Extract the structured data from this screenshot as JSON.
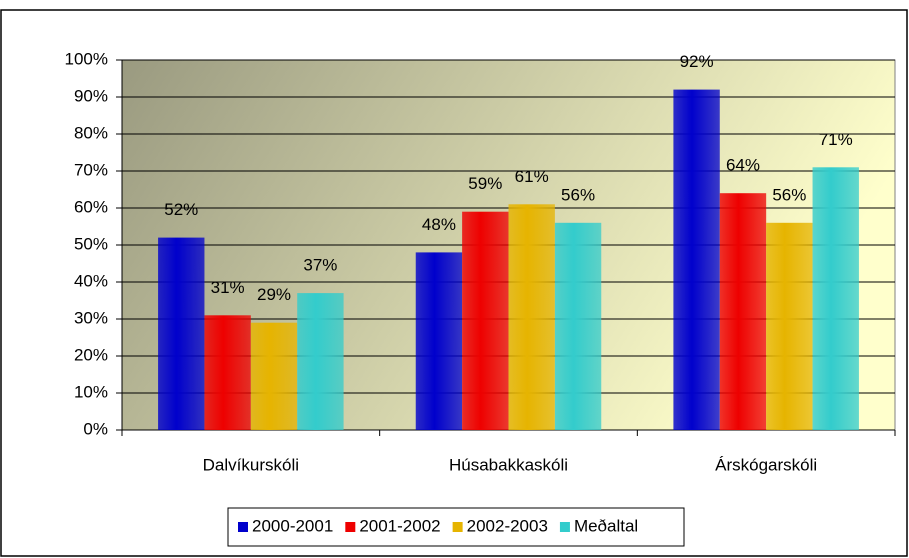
{
  "chart_data": {
    "type": "bar",
    "categories": [
      "Dalvíkurskóli",
      "Húsabakkaskóli",
      "Árskógarskóli"
    ],
    "series": [
      {
        "name": "2000-2001",
        "color": "#0000cc",
        "values": [
          52,
          48,
          92
        ],
        "value_labels": [
          "52%",
          "48%",
          "92%"
        ]
      },
      {
        "name": "2001-2002",
        "color": "#ee0000",
        "values": [
          31,
          59,
          64
        ],
        "value_labels": [
          "31%",
          "59%",
          "64%"
        ]
      },
      {
        "name": "2002-2003",
        "color": "#e6b400",
        "values": [
          29,
          61,
          56
        ],
        "value_labels": [
          "29%",
          "61%",
          "56%"
        ]
      },
      {
        "name": "Meðaltal",
        "color": "#33cccc",
        "values": [
          37,
          56,
          71
        ],
        "value_labels": [
          "37%",
          "56%",
          "71%"
        ]
      }
    ],
    "ylim": [
      0,
      100
    ],
    "yticks": [
      {
        "value": 0,
        "label": "0%"
      },
      {
        "value": 10,
        "label": "10%"
      },
      {
        "value": 20,
        "label": "20%"
      },
      {
        "value": 30,
        "label": "30%"
      },
      {
        "value": 40,
        "label": "40%"
      },
      {
        "value": 50,
        "label": "50%"
      },
      {
        "value": 60,
        "label": "60%"
      },
      {
        "value": 70,
        "label": "70%"
      },
      {
        "value": 80,
        "label": "80%"
      },
      {
        "value": 90,
        "label": "90%"
      },
      {
        "value": 100,
        "label": "100%"
      }
    ],
    "grid": true,
    "legend": "bottom"
  }
}
